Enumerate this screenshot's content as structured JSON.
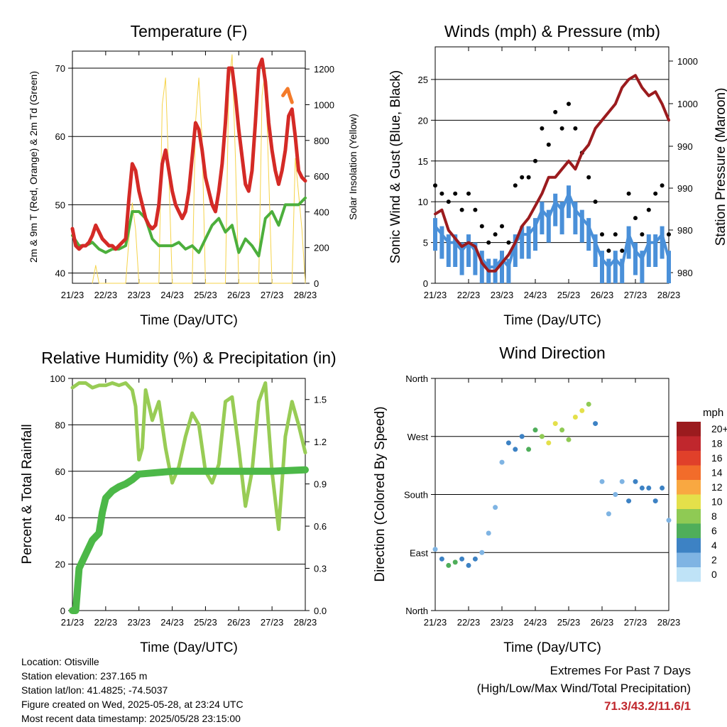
{
  "panels": {
    "temperature": {
      "title": "Temperature (F)",
      "xlabel": "Time (Day/UTC)",
      "ylabel_left": "2m & 9m T (Red, Orange) & 2m Td (Green)",
      "ylabel_right": "Solar Insolation (Yellow)"
    },
    "winds": {
      "title": "Winds (mph) & Pressure (mb)",
      "xlabel": "Time (Day/UTC)",
      "ylabel_left": "Sonic Wind & Gust (Blue, Black)",
      "ylabel_right": "Station Pressure (Maroon)"
    },
    "humidity": {
      "title": "Relative Humidity (%) & Precipitation (in)",
      "xlabel": "Time (Day/UTC)",
      "ylabel_left": "Percent & Total Rainfall"
    },
    "direction": {
      "title": "Wind Direction",
      "xlabel": "Time (Day/UTC)",
      "ylabel_left": "Direction (Colored By Speed)"
    }
  },
  "legend": {
    "title": "mph",
    "labels": [
      "20+",
      "18",
      "16",
      "14",
      "12",
      "10",
      "8",
      "6",
      "4",
      "2",
      "0"
    ],
    "colors": [
      "#9b1b1e",
      "#c0272d",
      "#e0402a",
      "#f26c2a",
      "#f9a841",
      "#e4e04a",
      "#8fca54",
      "#4fae5a",
      "#3d82c4",
      "#7fb4e3",
      "#bfe3f7"
    ]
  },
  "info": {
    "location": "Location: Otisville",
    "elevation": "Station elevation: 237.165 m",
    "latlon": "Station lat/lon: 41.4825; -74.5037",
    "created": "Figure created on Wed, 2025-05-28, at 23:24 UTC",
    "recent": "Most recent data timestamp: 2025/05/28 23:15:00"
  },
  "extremes": {
    "line1": "Extremes For Past 7 Days",
    "line2": "(High/Low/Max Wind/Total Precipitation)",
    "value": "71.3/43.2/11.6/1"
  },
  "chart_data": [
    {
      "id": "temperature",
      "type": "line",
      "title": "Temperature (F)",
      "xlabel": "Time (Day/UTC)",
      "ylabel": "2m & 9m T (Red, Orange) & 2m Td (Green)",
      "ylabel_right": "Solar Insolation (Yellow)",
      "x_ticks": [
        "21/23",
        "22/23",
        "23/23",
        "24/23",
        "25/23",
        "26/23",
        "27/23",
        "28/23"
      ],
      "xlim": [
        0,
        7
      ],
      "ylim": [
        38.5,
        72.5
      ],
      "y_ticks": [
        40,
        50,
        60,
        70
      ],
      "y2lim": [
        0,
        1300
      ],
      "y2_ticks": [
        0,
        200,
        400,
        600,
        800,
        1000,
        1200
      ],
      "series": [
        {
          "name": "2m T",
          "color": "#d42a26",
          "x": [
            0,
            0.1,
            0.2,
            0.3,
            0.4,
            0.5,
            0.6,
            0.7,
            0.8,
            0.9,
            1.0,
            1.1,
            1.2,
            1.3,
            1.4,
            1.5,
            1.6,
            1.7,
            1.8,
            1.9,
            2.0,
            2.1,
            2.2,
            2.3,
            2.4,
            2.5,
            2.6,
            2.7,
            2.8,
            2.9,
            3.0,
            3.1,
            3.2,
            3.3,
            3.4,
            3.5,
            3.6,
            3.7,
            3.8,
            3.9,
            4.0,
            4.1,
            4.2,
            4.3,
            4.4,
            4.5,
            4.6,
            4.7,
            4.8,
            4.9,
            5.0,
            5.1,
            5.2,
            5.3,
            5.4,
            5.5,
            5.6,
            5.7,
            5.8,
            5.9,
            6.0,
            6.1,
            6.2,
            6.3,
            6.4,
            6.5,
            6.6,
            6.7,
            6.8,
            6.9,
            7.0
          ],
          "values": [
            46.5,
            44,
            43.5,
            44,
            44,
            44.5,
            45.5,
            47,
            46,
            45,
            44.5,
            44,
            44,
            43.5,
            44,
            44.5,
            45,
            51,
            56,
            55,
            52,
            50,
            48,
            47,
            46.5,
            47,
            50,
            56,
            58,
            55,
            52,
            50,
            49,
            48,
            49,
            52,
            57,
            62,
            61,
            58,
            54,
            52,
            50,
            49,
            52,
            56,
            62,
            70,
            70,
            66,
            61,
            57,
            53,
            52,
            55,
            62,
            70,
            71.3,
            68,
            62,
            58,
            55,
            53,
            55,
            58,
            63,
            64,
            60,
            55,
            54,
            53.5
          ]
        },
        {
          "name": "9m T",
          "color": "#f47b2a",
          "x": [
            6.33,
            6.4,
            6.47,
            6.53,
            6.6
          ],
          "values": [
            66,
            66.5,
            67,
            66,
            65
          ]
        },
        {
          "name": "2m Td",
          "color": "#4caf3c",
          "x": [
            0,
            0.2,
            0.4,
            0.6,
            0.8,
            1.0,
            1.2,
            1.4,
            1.6,
            1.8,
            2.0,
            2.2,
            2.4,
            2.6,
            2.8,
            3.0,
            3.2,
            3.4,
            3.6,
            3.8,
            4.0,
            4.2,
            4.4,
            4.6,
            4.8,
            5.0,
            5.2,
            5.4,
            5.6,
            5.8,
            6.0,
            6.2,
            6.4,
            6.6,
            6.8,
            7.0
          ],
          "values": [
            45.5,
            44,
            44,
            44.5,
            43.5,
            43,
            43.5,
            43.5,
            44,
            49,
            49,
            48,
            45,
            44,
            44,
            44,
            44.5,
            43.5,
            44,
            43,
            45,
            47,
            48,
            46,
            47,
            43,
            45,
            44,
            42.5,
            48,
            49,
            47,
            50,
            50,
            50,
            51
          ]
        },
        {
          "name": "Solar Insolation",
          "color": "#f5d34a",
          "axis": "right",
          "x": [
            0.6,
            0.7,
            0.8,
            1.6,
            1.7,
            1.8,
            1.9,
            2.0,
            2.6,
            2.7,
            2.8,
            2.9,
            3.0,
            3.6,
            3.7,
            3.8,
            3.9,
            4.0,
            4.6,
            4.7,
            4.8,
            4.9,
            5.0,
            5.6,
            5.7,
            5.8,
            5.9,
            6.0,
            6.6,
            6.7,
            6.8,
            6.9,
            7.0
          ],
          "values": [
            0,
            100,
            0,
            0,
            250,
            450,
            300,
            0,
            0,
            1000,
            1150,
            600,
            0,
            0,
            900,
            1150,
            800,
            0,
            0,
            1100,
            1280,
            700,
            0,
            0,
            1050,
            1200,
            600,
            0,
            0,
            700,
            500,
            300,
            0
          ]
        }
      ]
    },
    {
      "id": "winds",
      "type": "scatter",
      "title": "Winds (mph) & Pressure (mb)",
      "xlabel": "Time (Day/UTC)",
      "ylabel": "Sonic Wind & Gust (Blue, Black)",
      "ylabel_right": "Station Pressure (Maroon)",
      "x_ticks": [
        "21/23",
        "22/23",
        "23/23",
        "24/23",
        "25/23",
        "26/23",
        "27/23",
        "28/23"
      ],
      "xlim": [
        0,
        7
      ],
      "ylim": [
        0,
        29
      ],
      "y_ticks": [
        0,
        5,
        10,
        15,
        20,
        25
      ],
      "y2_ticks": [
        "980",
        "980",
        "990",
        "990",
        "1000",
        "1000"
      ],
      "series": [
        {
          "name": "Sonic Wind",
          "color": "#4a90d9",
          "x": [
            0,
            0.2,
            0.4,
            0.6,
            0.8,
            1.0,
            1.2,
            1.4,
            1.6,
            1.8,
            2.0,
            2.2,
            2.4,
            2.6,
            2.8,
            3.0,
            3.2,
            3.4,
            3.6,
            3.8,
            4.0,
            4.2,
            4.4,
            4.6,
            4.8,
            5.0,
            5.2,
            5.4,
            5.6,
            5.8,
            6.0,
            6.2,
            6.4,
            6.6,
            6.8,
            7.0
          ],
          "values": [
            7,
            6,
            5,
            5,
            4,
            5,
            4,
            3,
            2,
            2,
            3,
            2,
            5,
            6,
            6,
            7,
            9,
            8,
            10,
            9,
            11,
            9,
            8,
            7,
            5,
            3,
            2,
            3,
            2,
            6,
            4,
            3,
            5,
            5,
            6,
            3
          ]
        },
        {
          "name": "Gust",
          "color": "#000000",
          "x": [
            0,
            0.2,
            0.4,
            0.6,
            0.8,
            1.0,
            1.2,
            1.4,
            1.6,
            1.8,
            2.0,
            2.2,
            2.4,
            2.6,
            2.8,
            3.0,
            3.2,
            3.4,
            3.6,
            3.8,
            4.0,
            4.2,
            4.4,
            4.6,
            4.8,
            5.0,
            5.2,
            5.4,
            5.6,
            5.8,
            6.0,
            6.2,
            6.4,
            6.6,
            6.8,
            7.0
          ],
          "values": [
            12,
            11,
            10,
            11,
            9,
            11,
            9,
            7,
            5,
            6,
            7,
            5,
            12,
            13,
            13,
            15,
            19,
            17,
            21,
            19,
            22,
            19,
            16,
            13,
            10,
            6,
            4,
            6,
            4,
            11,
            8,
            6,
            9,
            11,
            12,
            6
          ]
        },
        {
          "name": "Station Pressure",
          "color": "#9b1b1e",
          "axis": "right",
          "x": [
            0,
            0.2,
            0.4,
            0.6,
            0.8,
            1.0,
            1.2,
            1.4,
            1.6,
            1.8,
            2.0,
            2.2,
            2.4,
            2.6,
            2.8,
            3.0,
            3.2,
            3.4,
            3.6,
            3.8,
            4.0,
            4.2,
            4.4,
            4.6,
            4.8,
            5.0,
            5.2,
            5.4,
            5.6,
            5.8,
            6.0,
            6.2,
            6.4,
            6.6,
            6.8,
            7.0
          ],
          "values": [
            8.5,
            9,
            6.5,
            5.5,
            4.5,
            5,
            4.5,
            2.5,
            1.5,
            1.5,
            2.5,
            3.5,
            5,
            7,
            8,
            9.5,
            11,
            13,
            13,
            14,
            15,
            14,
            16,
            17,
            19,
            20,
            21,
            22,
            24,
            25,
            25.5,
            24,
            23,
            23.5,
            22,
            20
          ]
        }
      ]
    },
    {
      "id": "humidity",
      "type": "line",
      "title": "Relative Humidity (%) & Precipitation (in)",
      "xlabel": "Time (Day/UTC)",
      "ylabel": "Percent & Total Rainfall",
      "x_ticks": [
        "21/23",
        "22/23",
        "23/23",
        "24/23",
        "25/23",
        "26/23",
        "27/23",
        "28/23"
      ],
      "xlim": [
        0,
        7
      ],
      "ylim": [
        0,
        100
      ],
      "y_ticks": [
        0,
        20,
        40,
        60,
        80,
        100
      ],
      "y2lim": [
        0,
        1.65
      ],
      "y2_ticks": [
        "0.0",
        "0.3",
        "0.6",
        "0.9",
        "1.2",
        "1.5"
      ],
      "series": [
        {
          "name": "Relative Humidity",
          "color": "#98cc55",
          "x": [
            0,
            0.2,
            0.4,
            0.6,
            0.8,
            1.0,
            1.2,
            1.4,
            1.6,
            1.8,
            1.9,
            2.0,
            2.1,
            2.2,
            2.4,
            2.6,
            2.8,
            3.0,
            3.2,
            3.4,
            3.6,
            3.8,
            4.0,
            4.2,
            4.4,
            4.6,
            4.8,
            5.0,
            5.2,
            5.4,
            5.6,
            5.8,
            6.0,
            6.2,
            6.4,
            6.6,
            6.8,
            7.0
          ],
          "values": [
            96,
            98,
            98,
            96,
            97,
            97,
            98,
            97,
            98,
            95,
            88,
            65,
            70,
            95,
            82,
            90,
            70,
            55,
            62,
            75,
            85,
            80,
            60,
            55,
            63,
            90,
            92,
            70,
            45,
            60,
            90,
            98,
            60,
            35,
            75,
            90,
            80,
            68
          ]
        },
        {
          "name": "Total Rainfall",
          "color": "#4cb848",
          "axis": "right",
          "x": [
            0,
            0.1,
            0.2,
            0.4,
            0.6,
            0.8,
            0.9,
            1.0,
            1.2,
            1.4,
            1.6,
            1.8,
            2.0,
            2.5,
            3.0,
            4.0,
            5.0,
            6.0,
            7.0
          ],
          "values": [
            0,
            0,
            0.3,
            0.4,
            0.5,
            0.55,
            0.7,
            0.8,
            0.85,
            0.88,
            0.9,
            0.93,
            0.97,
            0.98,
            0.99,
            0.99,
            0.99,
            0.99,
            1.0
          ]
        }
      ]
    },
    {
      "id": "direction",
      "type": "scatter",
      "title": "Wind Direction",
      "xlabel": "Time (Day/UTC)",
      "ylabel": "Direction (Colored By Speed)",
      "x_ticks": [
        "21/23",
        "22/23",
        "23/23",
        "24/23",
        "25/23",
        "26/23",
        "27/23",
        "28/23"
      ],
      "xlim": [
        0,
        7
      ],
      "y_ticks": [
        "North",
        "East",
        "South",
        "West",
        "North"
      ],
      "ylim": [
        0,
        360
      ],
      "series": [
        {
          "name": "Wind direction",
          "x": [
            0,
            0.2,
            0.4,
            0.6,
            0.8,
            1.0,
            1.2,
            1.4,
            1.6,
            1.8,
            2.0,
            2.2,
            2.4,
            2.6,
            2.8,
            3.0,
            3.2,
            3.4,
            3.6,
            3.8,
            4.0,
            4.2,
            4.4,
            4.6,
            4.8,
            5.0,
            5.2,
            5.4,
            5.6,
            5.8,
            6.0,
            6.2,
            6.4,
            6.6,
            6.8,
            7.0
          ],
          "values": [
            95,
            80,
            70,
            75,
            80,
            70,
            80,
            90,
            120,
            160,
            230,
            260,
            250,
            270,
            250,
            280,
            270,
            260,
            290,
            280,
            265,
            300,
            310,
            320,
            290,
            200,
            150,
            180,
            200,
            170,
            200,
            190,
            190,
            170,
            190,
            140
          ],
          "speed": [
            2,
            4,
            6,
            5,
            4,
            4,
            3,
            2,
            1,
            1,
            2,
            3,
            4,
            4,
            5,
            6,
            8,
            9,
            10,
            8,
            7,
            9,
            10,
            8,
            4,
            2,
            1,
            2,
            1,
            3,
            3,
            4,
            3,
            3,
            4,
            2
          ]
        }
      ]
    }
  ]
}
